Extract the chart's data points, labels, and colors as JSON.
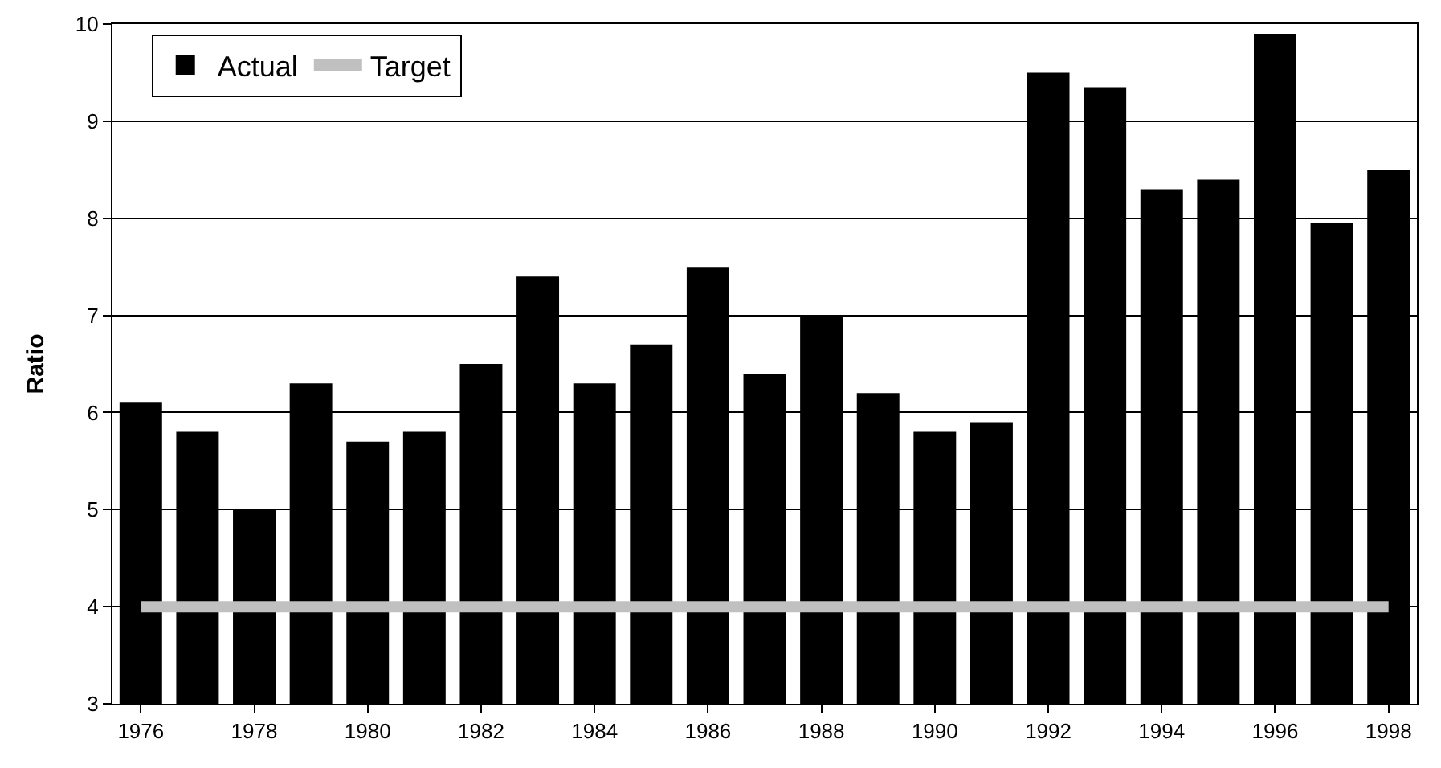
{
  "chart_data": {
    "type": "bar",
    "ylabel": "Ratio",
    "categories": [
      "1976",
      null,
      "1978",
      null,
      "1980",
      null,
      "1982",
      null,
      "1984",
      null,
      "1986",
      null,
      "1988",
      null,
      "1990",
      null,
      "1992",
      null,
      "1994",
      null,
      "1996",
      null,
      "1998"
    ],
    "series": [
      {
        "name": "Actual",
        "color": "#000000",
        "values": [
          6.1,
          5.8,
          5.0,
          6.3,
          5.7,
          5.8,
          6.5,
          7.4,
          6.3,
          6.7,
          7.5,
          6.4,
          7.0,
          6.2,
          5.8,
          5.9,
          9.5,
          9.35,
          8.3,
          8.4,
          9.9,
          7.95,
          8.5
        ]
      },
      {
        "name": "Target",
        "type": "line",
        "color": "#c0c0c0",
        "values": [
          4,
          4,
          4,
          4,
          4,
          4,
          4,
          4,
          4,
          4,
          4,
          4,
          4,
          4,
          4,
          4,
          4,
          4,
          4,
          4,
          4,
          4,
          4
        ]
      }
    ],
    "ylim": [
      3,
      10
    ],
    "yticks": [
      3,
      4,
      5,
      6,
      7,
      8,
      9,
      10
    ],
    "grid": "y",
    "legend": "top left"
  }
}
